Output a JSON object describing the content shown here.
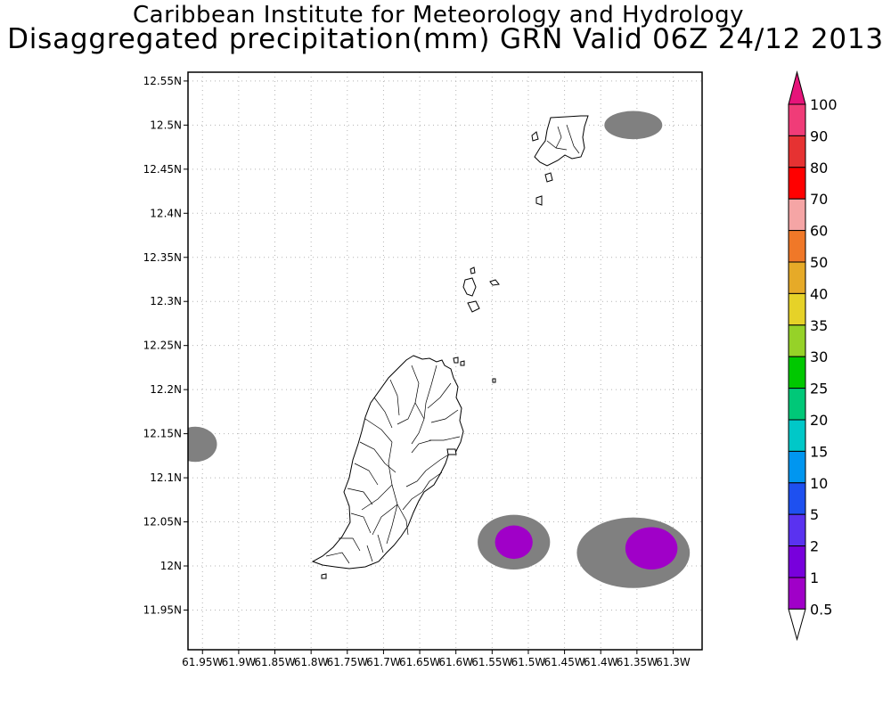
{
  "title_line1": "Caribbean Institute for Meteorology and Hydrology",
  "title_line2": "Disaggregated precipitation(mm) GRN Valid 06Z 24/12 2013",
  "lat_ticks": [
    "12.55N",
    "12.5N",
    "12.45N",
    "12.4N",
    "12.35N",
    "12.3N",
    "12.25N",
    "12.2N",
    "12.15N",
    "12.1N",
    "12.05N",
    "12N",
    "11.95N"
  ],
  "lon_ticks": [
    "61.95W",
    "61.9W",
    "61.85W",
    "61.8W",
    "61.75W",
    "61.7W",
    "61.65W",
    "61.6W",
    "61.55W",
    "61.5W",
    "61.45W",
    "61.4W",
    "61.35W",
    "61.3W"
  ],
  "colorbar": {
    "labels": [
      "100",
      "90",
      "80",
      "70",
      "60",
      "50",
      "40",
      "35",
      "30",
      "25",
      "20",
      "15",
      "10",
      "5",
      "2",
      "1",
      "0.5"
    ],
    "colors": [
      "#f03c78",
      "#e63232",
      "#ff0000",
      "#f5a5a5",
      "#f07828",
      "#e6aa28",
      "#e6d228",
      "#96d228",
      "#00c800",
      "#00c878",
      "#00c8c8",
      "#0096f0",
      "#1e50f0",
      "#5a32f0",
      "#7800dc",
      "#a000c8",
      "#808080"
    ],
    "top_arrow_color": "#e6147a"
  },
  "chart_data": {
    "type": "heatmap",
    "xlim": [
      -61.97,
      -61.26
    ],
    "ylim": [
      11.905,
      12.56
    ],
    "precip_areas": [
      {
        "lon": -61.355,
        "lat": 12.5,
        "rlon": 0.04,
        "rlat": 0.016,
        "value": 0.5
      },
      {
        "lon": -61.96,
        "lat": 12.138,
        "rlon": 0.03,
        "rlat": 0.02,
        "value": 0.5
      },
      {
        "lon": -61.52,
        "lat": 12.027,
        "rlon": 0.05,
        "rlat": 0.031,
        "value": 0.5
      },
      {
        "lon": -61.52,
        "lat": 12.027,
        "rlon": 0.026,
        "rlat": 0.019,
        "value": 1
      },
      {
        "lon": -61.355,
        "lat": 12.015,
        "rlon": 0.078,
        "rlat": 0.04,
        "value": 0.5
      },
      {
        "lon": -61.33,
        "lat": 12.02,
        "rlon": 0.036,
        "rlat": 0.024,
        "value": 1
      }
    ]
  }
}
